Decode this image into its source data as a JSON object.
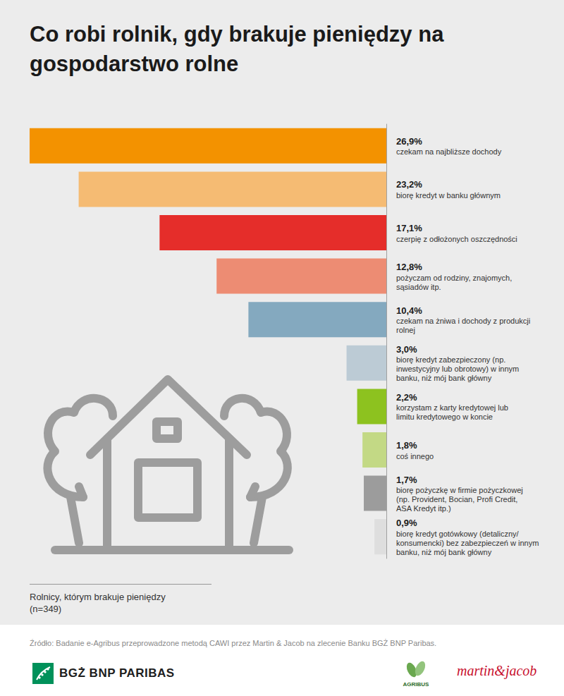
{
  "chart_data": {
    "type": "bar",
    "title": "Co robi rolnik, gdy brakuje pieniędzy na gospodarstwo rolne",
    "orientation": "horizontal",
    "categories": [
      "czekam na najbliższe dochody",
      "biorę kredyt w banku głównym",
      "czerpię z odłożonych oszczędności",
      "pożyczam od rodziny, znajomych, sąsiadów itp.",
      "czekam na żniwa i dochody z produkcji rolnej",
      "biorę kredyt zabezpieczony (np. inwestycyjny lub obrotowy) w innym banku, niż mój bank główny",
      "korzystam z karty kredytowej lub limitu kredytowego w koncie",
      "coś innego",
      "biorę pożyczkę w firmie pożyczkowej (np. Provident, Bocian, Profi Credit, ASA Kredyt itp.)",
      "biorę kredyt gotówkowy (detaliczny/ konsumencki) bez zabezpieczeń w innym banku, niż mój bank główny"
    ],
    "values": [
      26.9,
      23.2,
      17.1,
      12.8,
      10.4,
      3.0,
      2.2,
      1.8,
      1.7,
      0.9
    ],
    "value_labels": [
      "26,9%",
      "23,2%",
      "17,1%",
      "12,8%",
      "10,4%",
      "3,0%",
      "2,2%",
      "1,8%",
      "1,7%",
      "0,9%"
    ],
    "colors": [
      "#f39200",
      "#f5bb73",
      "#e52d2a",
      "#ed8c73",
      "#84a9bf",
      "#bccbd5",
      "#8dc21f",
      "#c3d985",
      "#9c9c9c",
      "#dedede"
    ],
    "xlim": [
      0,
      26.9
    ],
    "tick_labels": false,
    "data_labels": true,
    "grid": false,
    "note": [
      "Rolnicy, którym brakuje pieniędzy",
      "(n=349)"
    ],
    "source": "Źródło: Badanie e-Agribus przeprowadzone metodą CAWI przez Martin & Jacob na zlecenie Banku BGŻ BNP Paribas.",
    "logos": [
      "BGŻ BNP PARIBAS",
      "AGRIBUS",
      "martin&jacob"
    ]
  }
}
